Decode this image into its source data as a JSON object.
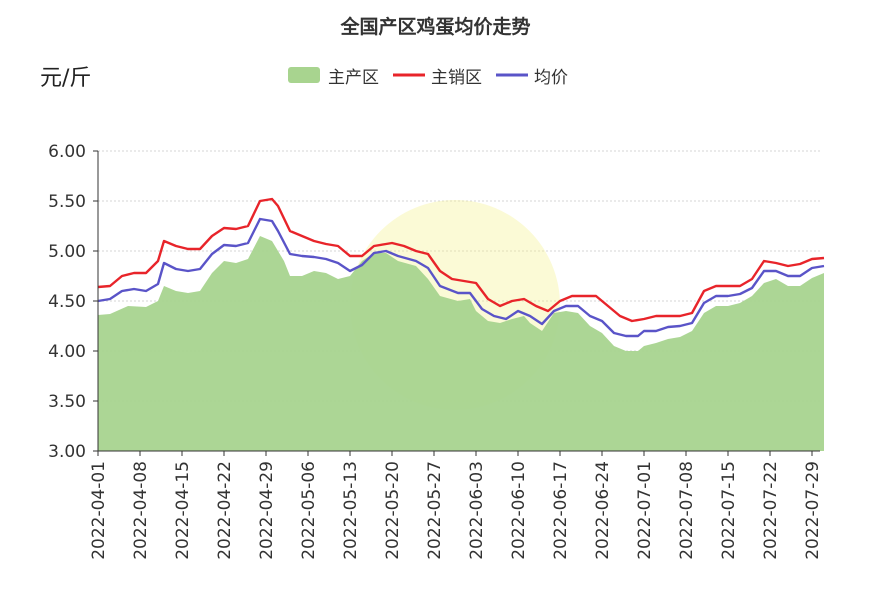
{
  "title": "全国产区鸡蛋均价走势",
  "unit": "元/斤",
  "legend": [
    {
      "name": "主产区",
      "kind": "area",
      "color": "#a8d48f"
    },
    {
      "name": "主销区",
      "kind": "line",
      "color": "#e8242a"
    },
    {
      "name": "均价",
      "kind": "line",
      "color": "#5a54c8"
    }
  ],
  "chart_data": {
    "type": "line",
    "title": "全国产区鸡蛋均价走势",
    "ylabel": "元/斤",
    "ylim": [
      3.0,
      6.0
    ],
    "yticks": [
      "3.00",
      "3.50",
      "4.00",
      "4.50",
      "5.00",
      "5.50",
      "6.00"
    ],
    "xtick_labels": [
      "2022-04-01",
      "2022-04-08",
      "2022-04-15",
      "2022-04-22",
      "2022-04-29",
      "2022-05-06",
      "2022-05-13",
      "2022-05-20",
      "2022-05-27",
      "2022-06-03",
      "2022-06-10",
      "2022-06-17",
      "2022-06-24",
      "2022-07-01",
      "2022-07-08",
      "2022-07-15",
      "2022-07-22",
      "2022-07-29"
    ],
    "start_date": "2022-04-01",
    "grid": true,
    "legend_position": "top-center",
    "series": [
      {
        "name": "主产区",
        "type": "area",
        "color": "#a8d48f",
        "points": [
          [
            "2022-04-01",
            4.36
          ],
          [
            "2022-04-03",
            4.37
          ],
          [
            "2022-04-06",
            4.45
          ],
          [
            "2022-04-09",
            4.44
          ],
          [
            "2022-04-11",
            4.5
          ],
          [
            "2022-04-12",
            4.65
          ],
          [
            "2022-04-14",
            4.6
          ],
          [
            "2022-04-16",
            4.58
          ],
          [
            "2022-04-18",
            4.6
          ],
          [
            "2022-04-20",
            4.78
          ],
          [
            "2022-04-22",
            4.9
          ],
          [
            "2022-04-24",
            4.88
          ],
          [
            "2022-04-26",
            4.92
          ],
          [
            "2022-04-28",
            5.15
          ],
          [
            "2022-04-30",
            5.1
          ],
          [
            "2022-05-02",
            4.9
          ],
          [
            "2022-05-03",
            4.75
          ],
          [
            "2022-05-05",
            4.75
          ],
          [
            "2022-05-07",
            4.8
          ],
          [
            "2022-05-09",
            4.78
          ],
          [
            "2022-05-11",
            4.72
          ],
          [
            "2022-05-13",
            4.75
          ],
          [
            "2022-05-15",
            4.9
          ],
          [
            "2022-05-17",
            4.98
          ],
          [
            "2022-05-19",
            4.98
          ],
          [
            "2022-05-21",
            4.9
          ],
          [
            "2022-05-24",
            4.85
          ],
          [
            "2022-05-26",
            4.72
          ],
          [
            "2022-05-28",
            4.55
          ],
          [
            "2022-05-31",
            4.5
          ],
          [
            "2022-06-02",
            4.52
          ],
          [
            "2022-06-03",
            4.4
          ],
          [
            "2022-06-05",
            4.3
          ],
          [
            "2022-06-07",
            4.28
          ],
          [
            "2022-06-09",
            4.32
          ],
          [
            "2022-06-11",
            4.35
          ],
          [
            "2022-06-12",
            4.28
          ],
          [
            "2022-06-14",
            4.2
          ],
          [
            "2022-06-16",
            4.38
          ],
          [
            "2022-06-18",
            4.4
          ],
          [
            "2022-06-20",
            4.38
          ],
          [
            "2022-06-22",
            4.25
          ],
          [
            "2022-06-24",
            4.18
          ],
          [
            "2022-06-26",
            4.05
          ],
          [
            "2022-06-28",
            4.0
          ],
          [
            "2022-06-30",
            4.0
          ],
          [
            "2022-07-01",
            4.05
          ],
          [
            "2022-07-03",
            4.08
          ],
          [
            "2022-07-05",
            4.12
          ],
          [
            "2022-07-07",
            4.14
          ],
          [
            "2022-07-09",
            4.2
          ],
          [
            "2022-07-11",
            4.38
          ],
          [
            "2022-07-13",
            4.45
          ],
          [
            "2022-07-15",
            4.45
          ],
          [
            "2022-07-17",
            4.48
          ],
          [
            "2022-07-19",
            4.55
          ],
          [
            "2022-07-21",
            4.68
          ],
          [
            "2022-07-23",
            4.72
          ],
          [
            "2022-07-25",
            4.65
          ],
          [
            "2022-07-27",
            4.65
          ],
          [
            "2022-07-29",
            4.73
          ],
          [
            "2022-07-31",
            4.78
          ]
        ]
      },
      {
        "name": "主销区",
        "type": "line",
        "color": "#e8242a",
        "points": [
          [
            "2022-04-01",
            4.64
          ],
          [
            "2022-04-03",
            4.65
          ],
          [
            "2022-04-05",
            4.75
          ],
          [
            "2022-04-07",
            4.78
          ],
          [
            "2022-04-09",
            4.78
          ],
          [
            "2022-04-11",
            4.9
          ],
          [
            "2022-04-12",
            5.1
          ],
          [
            "2022-04-14",
            5.05
          ],
          [
            "2022-04-16",
            5.02
          ],
          [
            "2022-04-18",
            5.02
          ],
          [
            "2022-04-20",
            5.15
          ],
          [
            "2022-04-22",
            5.23
          ],
          [
            "2022-04-24",
            5.22
          ],
          [
            "2022-04-26",
            5.25
          ],
          [
            "2022-04-28",
            5.5
          ],
          [
            "2022-04-30",
            5.52
          ],
          [
            "2022-05-01",
            5.45
          ],
          [
            "2022-05-03",
            5.2
          ],
          [
            "2022-05-05",
            5.15
          ],
          [
            "2022-05-07",
            5.1
          ],
          [
            "2022-05-09",
            5.07
          ],
          [
            "2022-05-11",
            5.05
          ],
          [
            "2022-05-13",
            4.95
          ],
          [
            "2022-05-15",
            4.95
          ],
          [
            "2022-05-17",
            5.05
          ],
          [
            "2022-05-19",
            5.07
          ],
          [
            "2022-05-20",
            5.08
          ],
          [
            "2022-05-22",
            5.05
          ],
          [
            "2022-05-24",
            5.0
          ],
          [
            "2022-05-26",
            4.97
          ],
          [
            "2022-05-28",
            4.8
          ],
          [
            "2022-05-30",
            4.72
          ],
          [
            "2022-06-01",
            4.7
          ],
          [
            "2022-06-03",
            4.68
          ],
          [
            "2022-06-05",
            4.52
          ],
          [
            "2022-06-07",
            4.45
          ],
          [
            "2022-06-09",
            4.5
          ],
          [
            "2022-06-11",
            4.52
          ],
          [
            "2022-06-13",
            4.45
          ],
          [
            "2022-06-15",
            4.4
          ],
          [
            "2022-06-17",
            4.5
          ],
          [
            "2022-06-19",
            4.55
          ],
          [
            "2022-06-21",
            4.55
          ],
          [
            "2022-06-23",
            4.55
          ],
          [
            "2022-06-25",
            4.45
          ],
          [
            "2022-06-27",
            4.35
          ],
          [
            "2022-06-29",
            4.3
          ],
          [
            "2022-07-01",
            4.32
          ],
          [
            "2022-07-03",
            4.35
          ],
          [
            "2022-07-05",
            4.35
          ],
          [
            "2022-07-07",
            4.35
          ],
          [
            "2022-07-09",
            4.38
          ],
          [
            "2022-07-11",
            4.6
          ],
          [
            "2022-07-13",
            4.65
          ],
          [
            "2022-07-15",
            4.65
          ],
          [
            "2022-07-17",
            4.65
          ],
          [
            "2022-07-19",
            4.72
          ],
          [
            "2022-07-21",
            4.9
          ],
          [
            "2022-07-23",
            4.88
          ],
          [
            "2022-07-25",
            4.85
          ],
          [
            "2022-07-27",
            4.87
          ],
          [
            "2022-07-29",
            4.92
          ],
          [
            "2022-07-31",
            4.93
          ]
        ]
      },
      {
        "name": "均价",
        "type": "line",
        "color": "#5a54c8",
        "points": [
          [
            "2022-04-01",
            4.5
          ],
          [
            "2022-04-03",
            4.52
          ],
          [
            "2022-04-05",
            4.6
          ],
          [
            "2022-04-07",
            4.62
          ],
          [
            "2022-04-09",
            4.6
          ],
          [
            "2022-04-11",
            4.67
          ],
          [
            "2022-04-12",
            4.88
          ],
          [
            "2022-04-14",
            4.82
          ],
          [
            "2022-04-16",
            4.8
          ],
          [
            "2022-04-18",
            4.82
          ],
          [
            "2022-04-20",
            4.97
          ],
          [
            "2022-04-22",
            5.06
          ],
          [
            "2022-04-24",
            5.05
          ],
          [
            "2022-04-26",
            5.08
          ],
          [
            "2022-04-28",
            5.32
          ],
          [
            "2022-04-30",
            5.3
          ],
          [
            "2022-05-01",
            5.2
          ],
          [
            "2022-05-03",
            4.97
          ],
          [
            "2022-05-05",
            4.95
          ],
          [
            "2022-05-07",
            4.94
          ],
          [
            "2022-05-09",
            4.92
          ],
          [
            "2022-05-11",
            4.88
          ],
          [
            "2022-05-13",
            4.8
          ],
          [
            "2022-05-15",
            4.86
          ],
          [
            "2022-05-17",
            4.98
          ],
          [
            "2022-05-19",
            5.0
          ],
          [
            "2022-05-21",
            4.95
          ],
          [
            "2022-05-24",
            4.9
          ],
          [
            "2022-05-26",
            4.83
          ],
          [
            "2022-05-28",
            4.65
          ],
          [
            "2022-05-31",
            4.58
          ],
          [
            "2022-06-02",
            4.58
          ],
          [
            "2022-06-04",
            4.42
          ],
          [
            "2022-06-06",
            4.35
          ],
          [
            "2022-06-08",
            4.32
          ],
          [
            "2022-06-10",
            4.4
          ],
          [
            "2022-06-12",
            4.35
          ],
          [
            "2022-06-14",
            4.27
          ],
          [
            "2022-06-16",
            4.4
          ],
          [
            "2022-06-18",
            4.45
          ],
          [
            "2022-06-20",
            4.45
          ],
          [
            "2022-06-22",
            4.35
          ],
          [
            "2022-06-24",
            4.3
          ],
          [
            "2022-06-26",
            4.18
          ],
          [
            "2022-06-28",
            4.15
          ],
          [
            "2022-06-30",
            4.15
          ],
          [
            "2022-07-01",
            4.2
          ],
          [
            "2022-07-03",
            4.2
          ],
          [
            "2022-07-05",
            4.24
          ],
          [
            "2022-07-07",
            4.25
          ],
          [
            "2022-07-09",
            4.28
          ],
          [
            "2022-07-11",
            4.48
          ],
          [
            "2022-07-13",
            4.55
          ],
          [
            "2022-07-15",
            4.55
          ],
          [
            "2022-07-17",
            4.57
          ],
          [
            "2022-07-19",
            4.63
          ],
          [
            "2022-07-21",
            4.8
          ],
          [
            "2022-07-23",
            4.8
          ],
          [
            "2022-07-25",
            4.75
          ],
          [
            "2022-07-27",
            4.75
          ],
          [
            "2022-07-29",
            4.83
          ],
          [
            "2022-07-31",
            4.85
          ]
        ]
      }
    ]
  }
}
